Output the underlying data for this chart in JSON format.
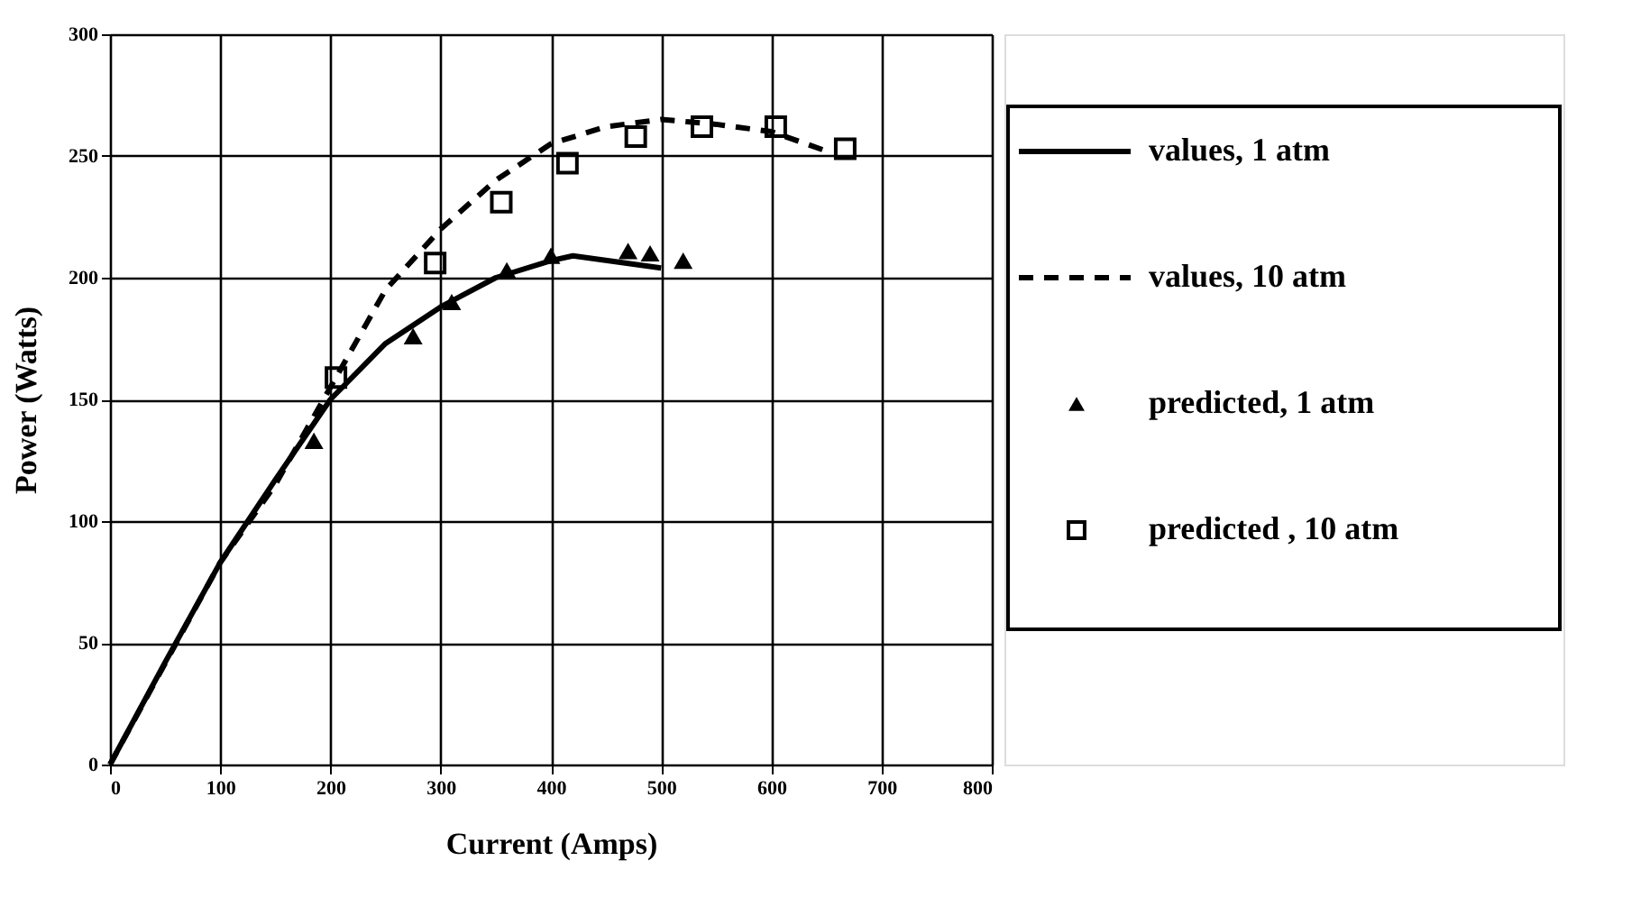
{
  "chart_data": {
    "type": "line",
    "xlabel": "Current (Amps)",
    "ylabel": "Power (Watts)",
    "xlim": [
      0,
      800
    ],
    "xticks": [
      0,
      100,
      200,
      300,
      400,
      500,
      600,
      700,
      800
    ],
    "ylim": [
      0,
      300
    ],
    "yticks": [
      0,
      50,
      100,
      150,
      200,
      250,
      300
    ],
    "grid": true,
    "legend": "right",
    "series": [
      {
        "name": "values, 1 atm",
        "line_style": "solid",
        "marker": "none",
        "color": "#000000",
        "x": [
          0,
          50,
          100,
          150,
          200,
          250,
          300,
          350,
          400,
          420,
          500
        ],
        "values": [
          0,
          42,
          83,
          117,
          150,
          173,
          188,
          200,
          207,
          209,
          204
        ]
      },
      {
        "name": "values, 10 atm",
        "line_style": "dashed",
        "marker": "none",
        "color": "#000000",
        "x": [
          0,
          100,
          150,
          200,
          250,
          300,
          350,
          400,
          450,
          500,
          550,
          600,
          650
        ],
        "values": [
          0,
          83,
          115,
          155,
          195,
          220,
          240,
          255,
          262,
          265,
          263,
          260,
          252
        ]
      },
      {
        "name": "predicted, 1 atm",
        "type": "scatter",
        "marker": "triangle",
        "color": "#000000",
        "x": [
          185,
          275,
          310,
          360,
          400,
          470,
          490,
          520
        ],
        "values": [
          133,
          176,
          190,
          203,
          209,
          211,
          210,
          207
        ]
      },
      {
        "name": "predicted , 10 atm",
        "type": "scatter",
        "marker": "square",
        "color": "#000000",
        "x": [
          205,
          295,
          355,
          415,
          477,
          537,
          604,
          667
        ],
        "values": [
          159,
          206,
          231,
          247,
          258,
          262,
          262,
          253
        ]
      }
    ]
  }
}
